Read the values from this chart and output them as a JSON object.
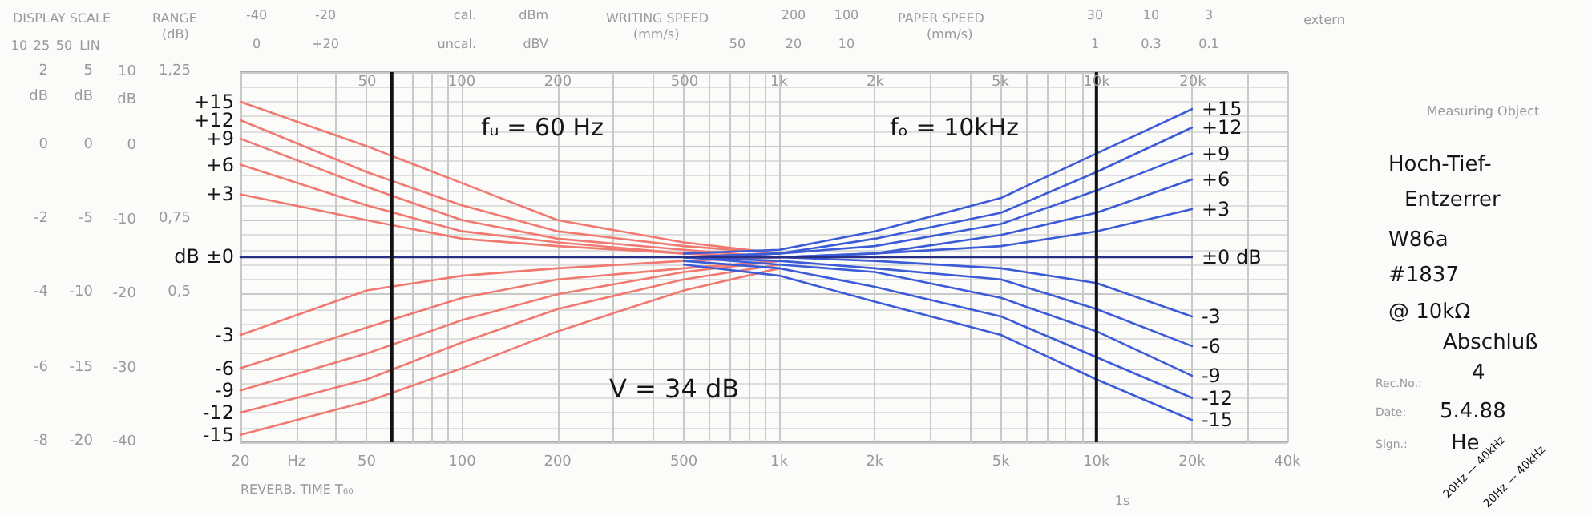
{
  "chart_data": {
    "type": "line",
    "log": "x",
    "grid": true,
    "marker": "none",
    "line_style": "solid",
    "xlim": [
      20,
      40000
    ],
    "xticks": [
      20,
      {
        "value": 30,
        "label": "Hz"
      },
      {
        "value": 40,
        "label": null
      },
      50,
      {
        "value": 70,
        "label": null
      },
      {
        "value": 80,
        "label": null
      },
      {
        "value": 90,
        "label": null
      },
      100,
      200,
      {
        "value": 300,
        "label": null
      },
      {
        "value": 400,
        "label": null
      },
      500,
      {
        "value": 600,
        "label": null
      },
      {
        "value": 700,
        "label": null
      },
      {
        "value": 800,
        "label": null
      },
      {
        "value": 900,
        "label": null
      },
      {
        "value": 1000,
        "label": "1k"
      },
      {
        "value": 2000,
        "label": "2k"
      },
      {
        "value": 3000,
        "label": null
      },
      {
        "value": 4000,
        "label": null
      },
      {
        "value": 5000,
        "label": "5k"
      },
      {
        "value": 6000,
        "label": null
      },
      {
        "value": 7000,
        "label": null
      },
      {
        "value": 8000,
        "label": null
      },
      {
        "value": 9000,
        "label": null
      },
      {
        "value": 10000,
        "label": "10k"
      },
      {
        "value": 20000,
        "label": "20k"
      },
      {
        "value": 30000,
        "label": null
      },
      {
        "value": 40000,
        "label": "40k"
      }
    ],
    "ylim": [
      -40,
      10
    ],
    "yticks": [
      10,
      0,
      -10,
      -20,
      -30,
      -40
    ],
    "ylabel": "dB",
    "ref_lines": [
      {
        "axis": "x",
        "value": 60,
        "color": "#111111"
      },
      {
        "axis": "x",
        "value": 10000,
        "color": "#111111"
      }
    ],
    "series": [
      {
        "name": "+15",
        "color": "#f07a72",
        "x": [
          20,
          50,
          100,
          200,
          500,
          1000
        ],
        "values": [
          6,
          0,
          -5,
          -10,
          -13,
          -14.5
        ]
      },
      {
        "name": "+12",
        "color": "#f07a72",
        "x": [
          20,
          50,
          100,
          200,
          500,
          1000
        ],
        "values": [
          3.5,
          -3.5,
          -8,
          -11.5,
          -13.5,
          -14.5
        ]
      },
      {
        "name": "+9",
        "color": "#f07a72",
        "x": [
          20,
          50,
          100,
          200,
          500,
          1000
        ],
        "values": [
          1,
          -5.5,
          -10,
          -12.5,
          -14,
          -15
        ]
      },
      {
        "name": "+6",
        "color": "#f07a72",
        "x": [
          20,
          50,
          100,
          200,
          500,
          1000
        ],
        "values": [
          -2.5,
          -8,
          -11.5,
          -13,
          -14.5,
          -15
        ]
      },
      {
        "name": "+3",
        "color": "#f07a72",
        "x": [
          20,
          50,
          100,
          200,
          500,
          1000
        ],
        "values": [
          -6.5,
          -10,
          -12.5,
          -13.5,
          -14.5,
          -15
        ]
      },
      {
        "name": "-3",
        "color": "#f07a72",
        "x": [
          20,
          50,
          100,
          200,
          500,
          1000
        ],
        "values": [
          -25.5,
          -19.5,
          -17.5,
          -16.5,
          -15.5,
          -15
        ]
      },
      {
        "name": "-6",
        "color": "#f07a72",
        "x": [
          20,
          50,
          100,
          200,
          500,
          1000
        ],
        "values": [
          -30,
          -24.5,
          -20.5,
          -18,
          -16.5,
          -15.5
        ]
      },
      {
        "name": "-9",
        "color": "#f07a72",
        "x": [
          20,
          50,
          100,
          200,
          500,
          1000
        ],
        "values": [
          -33,
          -28,
          -23.5,
          -20,
          -17,
          -15.5
        ]
      },
      {
        "name": "-12",
        "color": "#f07a72",
        "x": [
          20,
          50,
          100,
          200,
          500,
          1000
        ],
        "values": [
          -36,
          -31.5,
          -26.5,
          -22,
          -18,
          -16
        ]
      },
      {
        "name": "-15",
        "color": "#f07a72",
        "x": [
          20,
          50,
          100,
          200,
          500,
          1000
        ],
        "values": [
          -39,
          -34.5,
          -30,
          -25,
          -19.5,
          -16.5
        ]
      },
      {
        "name": "+15",
        "color": "#3c5bd6",
        "x": [
          500,
          1000,
          2000,
          5000,
          10000,
          20000
        ],
        "values": [
          -14.5,
          -14,
          -11.5,
          -7,
          -1,
          5
        ]
      },
      {
        "name": "+12",
        "color": "#3c5bd6",
        "x": [
          500,
          1000,
          2000,
          5000,
          10000,
          20000
        ],
        "values": [
          -15,
          -14.5,
          -12.5,
          -9,
          -3.5,
          2.5
        ]
      },
      {
        "name": "+9",
        "color": "#3c5bd6",
        "x": [
          500,
          1000,
          2000,
          5000,
          10000,
          20000
        ],
        "values": [
          -15,
          -14.5,
          -13.5,
          -10.5,
          -6,
          -1
        ]
      },
      {
        "name": "+6",
        "color": "#3c5bd6",
        "x": [
          500,
          1000,
          2000,
          5000,
          10000,
          20000
        ],
        "values": [
          -15,
          -15,
          -14.5,
          -12,
          -9,
          -4.5
        ]
      },
      {
        "name": "+3",
        "color": "#3c5bd6",
        "x": [
          500,
          1000,
          2000,
          5000,
          10000,
          20000
        ],
        "values": [
          -15,
          -15,
          -14.5,
          -13.5,
          -11.5,
          -8.5
        ]
      },
      {
        "name": "-3",
        "color": "#3c5bd6",
        "x": [
          500,
          1000,
          2000,
          5000,
          10000,
          20000
        ],
        "values": [
          -15,
          -15,
          -15.5,
          -16.5,
          -18.5,
          -23
        ]
      },
      {
        "name": "-6",
        "color": "#3c5bd6",
        "x": [
          500,
          1000,
          2000,
          5000,
          10000,
          20000
        ],
        "values": [
          -15,
          -15.5,
          -16.5,
          -18,
          -22,
          -27
        ]
      },
      {
        "name": "-9",
        "color": "#3c5bd6",
        "x": [
          500,
          1000,
          2000,
          5000,
          10000,
          20000
        ],
        "values": [
          -15,
          -16,
          -17,
          -20.5,
          -25,
          -31
        ]
      },
      {
        "name": "-12",
        "color": "#3c5bd6",
        "x": [
          500,
          1000,
          2000,
          5000,
          10000,
          20000
        ],
        "values": [
          -15.5,
          -16.5,
          -19,
          -23,
          -28.5,
          -34
        ]
      },
      {
        "name": "-15",
        "color": "#3c5bd6",
        "x": [
          500,
          1000,
          2000,
          5000,
          10000,
          20000
        ],
        "values": [
          -16,
          -17.5,
          -21,
          -25.5,
          -31.5,
          -37
        ]
      },
      {
        "name": "±0 dB",
        "color": "#2a2f86",
        "x": [
          20,
          20000
        ],
        "values": [
          -15,
          -15
        ]
      }
    ],
    "annotations": [
      "DISPLAY SCALE",
      "10",
      "25",
      "50",
      "LIN",
      "RANGE",
      "(dB)",
      "-40",
      "-20",
      "0",
      "+20",
      "cal.",
      "uncal.",
      "dBm",
      "dBV",
      "WRITING SPEED",
      "(mm/s)",
      "200",
      "100",
      "50",
      "20",
      "10",
      "PAPER SPEED",
      "(mm/s)",
      "30",
      "10",
      "3",
      "1",
      "0.3",
      "0.1",
      "extern",
      "Measuring Object",
      "Hoch-Tief-",
      "Entzerrer",
      "W86a",
      "#1837",
      "@ 10kΩ",
      "Abschluß",
      "Rec.No.:",
      "4",
      "Date:",
      "5.4.88",
      "Sign.:",
      "He",
      "REVERB. TIME T₆₀",
      "1s",
      "20Hz — 40kHz",
      "20Hz — 40kHz",
      "V = 34 dB",
      "dB ±0",
      "fᵤ = 60 Hz",
      "fₒ = 10kHz",
      "1,25",
      "0,75",
      "0,5",
      "2",
      "0",
      "-2",
      "-4",
      "-6",
      "-8",
      "5",
      "0",
      "-5",
      "-10",
      "-15",
      "-20",
      "dB",
      "dB",
      "50",
      "100",
      "200",
      "500",
      "1k",
      "2k",
      "5k",
      "10k",
      "20k"
    ]
  }
}
